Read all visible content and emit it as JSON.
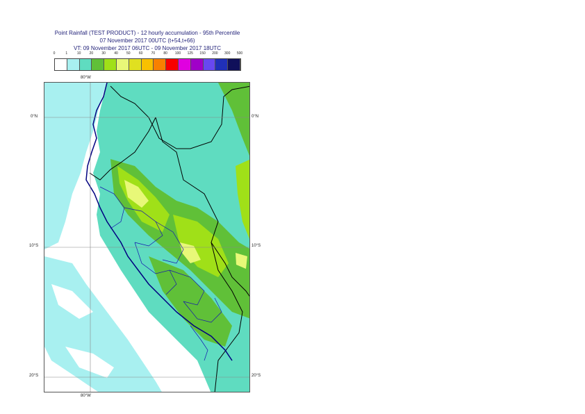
{
  "title": {
    "line1": "Point Rainfall (TEST PRODUCT) - 12 hourly accumulation - 95th Percentile",
    "line2": "07 November 2017 00UTC (t+54,t+66)",
    "line3": "VT: 09 November 2017 06UTC - 09 November 2017 18UTC"
  },
  "legend": {
    "ticks": [
      "0",
      "1",
      "10",
      "20",
      "30",
      "40",
      "50",
      "60",
      "70",
      "80",
      "100",
      "125",
      "150",
      "200",
      "300",
      "500"
    ],
    "colors": [
      "#ffffff",
      "#a8f0f0",
      "#5fdcc0",
      "#60c038",
      "#a0e018",
      "#e8f878",
      "#e0e020",
      "#f8c000",
      "#f88000",
      "#f80000",
      "#e000e0",
      "#a000c8",
      "#6848f0",
      "#2030b8",
      "#10105a"
    ]
  },
  "axes": {
    "lon_top": "80°W",
    "lon_bottom": "80°W",
    "lat_0_left": "0°N",
    "lat_0_right": "0°N",
    "lat_10_left": "10°S",
    "lat_10_right": "10°S",
    "lat_20_left": "20°S",
    "lat_20_right": "20°S"
  }
}
